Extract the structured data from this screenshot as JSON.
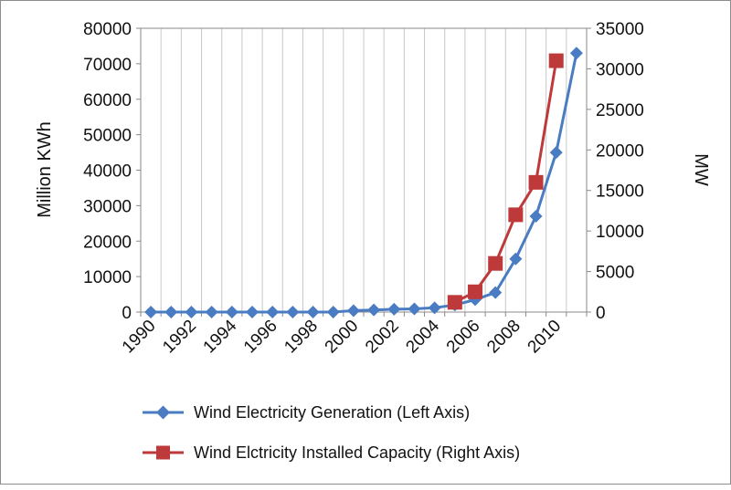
{
  "chart_data": {
    "type": "line",
    "x": [
      1990,
      1991,
      1992,
      1993,
      1994,
      1995,
      1996,
      1997,
      1998,
      1999,
      2000,
      2001,
      2002,
      2003,
      2004,
      2005,
      2006,
      2007,
      2008,
      2009,
      2010,
      2011
    ],
    "x_tick_labels": [
      "1990",
      "1992",
      "1994",
      "1996",
      "1998",
      "2000",
      "2002",
      "2004",
      "2006",
      "2008",
      "2010"
    ],
    "left_axis": {
      "label": "Million KWh",
      "ylim": [
        0,
        80000
      ],
      "ticks": [
        "0",
        "10000",
        "20000",
        "30000",
        "40000",
        "50000",
        "60000",
        "70000",
        "80000"
      ]
    },
    "right_axis": {
      "label": "MW",
      "ylim": [
        0,
        35000
      ],
      "ticks": [
        "0",
        "5000",
        "10000",
        "15000",
        "20000",
        "25000",
        "30000",
        "35000"
      ]
    },
    "grid": "vertical",
    "legend_position": "bottom",
    "series": [
      {
        "name": "Wind Electricity Generation (Left Axis)",
        "axis": "left",
        "color": "#4a7cc4",
        "marker": "diamond",
        "x": [
          1990,
          1991,
          1992,
          1993,
          1994,
          1995,
          1996,
          1997,
          1998,
          1999,
          2000,
          2001,
          2002,
          2003,
          2004,
          2005,
          2006,
          2007,
          2008,
          2009,
          2010,
          2011
        ],
        "values": [
          0,
          0,
          0,
          0,
          0,
          0,
          0,
          0,
          0,
          0,
          400,
          600,
          800,
          900,
          1200,
          2000,
          3500,
          5500,
          15000,
          27000,
          45000,
          73000
        ]
      },
      {
        "name": "Wind Elctricity Installed Capacity (Right Axis)",
        "axis": "right",
        "color": "#be3a3a",
        "marker": "square",
        "x": [
          2005,
          2006,
          2007,
          2008,
          2009,
          2010
        ],
        "values": [
          1200,
          2500,
          6000,
          12000,
          16000,
          31000
        ]
      }
    ]
  }
}
